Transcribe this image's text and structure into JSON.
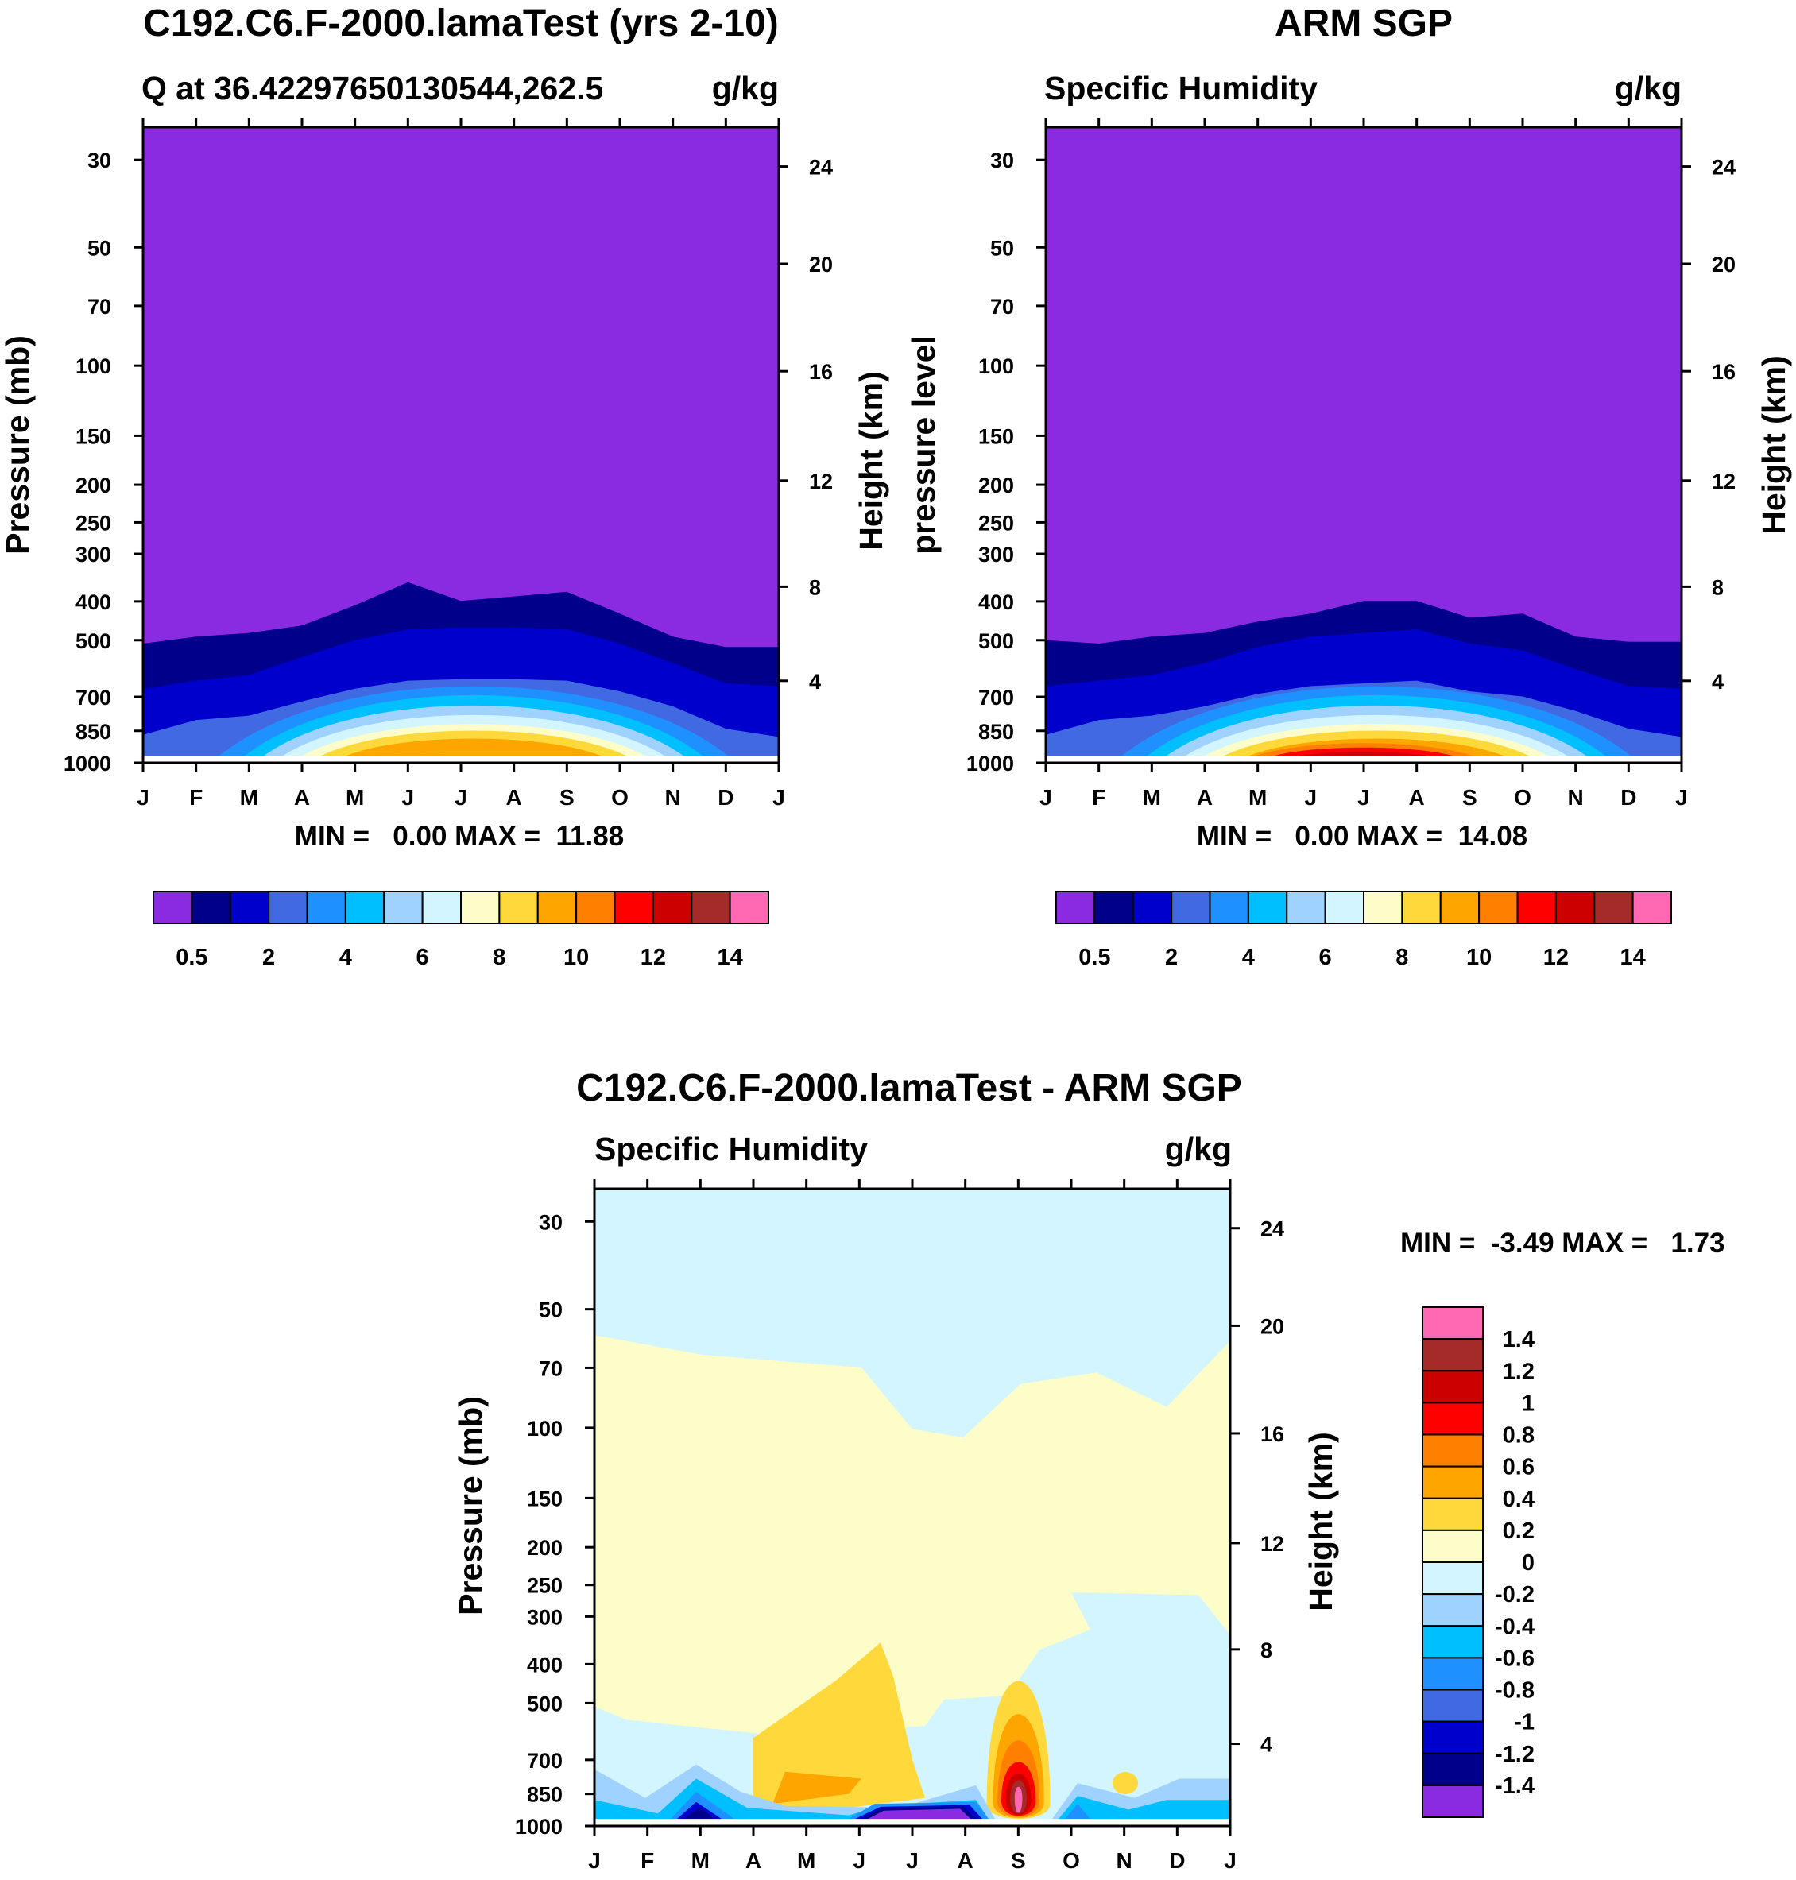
{
  "chart_data": [
    {
      "type": "heatmap",
      "title": "C192.C6.F-2000.lamaTest (yrs 2-10)",
      "subtitle_left": "Q at 36.42297650130544,262.5",
      "subtitle_right": "g/kg",
      "ylabel_left": "Pressure (mb)",
      "ylabel_right": "Height (km)",
      "months": [
        "J",
        "F",
        "M",
        "A",
        "M",
        "J",
        "J",
        "A",
        "S",
        "O",
        "N",
        "D",
        "J"
      ],
      "pressure_ticks": [
        "30",
        "50",
        "70",
        "100",
        "150",
        "200",
        "250",
        "300",
        "400",
        "500",
        "700",
        "850",
        "1000"
      ],
      "height_ticks": [
        "24",
        "20",
        "16",
        "12",
        "8",
        "4"
      ],
      "stats": "MIN =   0.00 MAX =  11.88",
      "colorbar_labels": [
        "0.5",
        "2",
        "4",
        "6",
        "8",
        "10",
        "12",
        "14"
      ],
      "min": 0.0,
      "max": 11.88,
      "contour_tops_mb": {
        "0.5": [
          500,
          480,
          470,
          450,
          400,
          350,
          390,
          380,
          370,
          420,
          480,
          510,
          510
        ],
        "1": [
          650,
          620,
          600,
          540,
          490,
          460,
          455,
          455,
          460,
          500,
          560,
          630,
          640
        ]
      }
    },
    {
      "type": "heatmap",
      "title": "ARM SGP",
      "subtitle_left": "Specific Humidity",
      "subtitle_right": "g/kg",
      "ylabel_left": "pressure level",
      "ylabel_right": "Height (km)",
      "months": [
        "J",
        "F",
        "M",
        "A",
        "M",
        "J",
        "J",
        "A",
        "S",
        "O",
        "N",
        "D",
        "J"
      ],
      "pressure_ticks": [
        "30",
        "50",
        "70",
        "100",
        "150",
        "200",
        "250",
        "300",
        "400",
        "500",
        "700",
        "850",
        "1000"
      ],
      "height_ticks": [
        "24",
        "20",
        "16",
        "12",
        "8",
        "4"
      ],
      "stats": "MIN =   0.00 MAX =  14.08",
      "colorbar_labels": [
        "0.5",
        "2",
        "4",
        "6",
        "8",
        "10",
        "12",
        "14"
      ],
      "min": 0.0,
      "max": 14.08,
      "contour_tops_mb": {
        "0.5": [
          490,
          500,
          480,
          470,
          440,
          420,
          390,
          390,
          430,
          420,
          480,
          495,
          495
        ],
        "1": [
          640,
          620,
          600,
          560,
          510,
          480,
          470,
          460,
          500,
          520,
          580,
          640,
          650
        ]
      }
    },
    {
      "type": "heatmap",
      "title": "C192.C6.F-2000.lamaTest - ARM SGP",
      "subtitle_left": "Specific Humidity",
      "subtitle_right": "g/kg",
      "ylabel_left": "Pressure (mb)",
      "ylabel_right": "Height (km)",
      "months": [
        "J",
        "F",
        "M",
        "A",
        "M",
        "J",
        "J",
        "A",
        "S",
        "O",
        "N",
        "D",
        "J"
      ],
      "pressure_ticks": [
        "30",
        "50",
        "70",
        "100",
        "150",
        "200",
        "250",
        "300",
        "400",
        "500",
        "700",
        "850",
        "1000"
      ],
      "height_ticks": [
        "24",
        "20",
        "16",
        "12",
        "8",
        "4"
      ],
      "stats": "MIN =  -3.49 MAX =   1.73",
      "colorbar_labels": [
        "1.4",
        "1.2",
        "1",
        "0.8",
        "0.6",
        "0.4",
        "0.2",
        "0",
        "-0.2",
        "-0.4",
        "-0.6",
        "-0.8",
        "-1",
        "-1.2",
        "-1.4"
      ],
      "min": -3.49,
      "max": 1.73
    }
  ],
  "palette": {
    "main": [
      "#8a2be2",
      "#00008b",
      "#0000cd",
      "#4169e1",
      "#1e90ff",
      "#00bfff",
      "#a0d2ff",
      "#d2f5ff",
      "#fdfdc9",
      "#ffd93b",
      "#ffa500",
      "#ff7f00",
      "#ff0000",
      "#cd0000",
      "#a52a2a",
      "#ff69b4"
    ],
    "diff": [
      "#ff69b4",
      "#a52a2a",
      "#cd0000",
      "#ff0000",
      "#ff7f00",
      "#ffa500",
      "#ffd93b",
      "#fdfdc9",
      "#d2f5ff",
      "#a0d2ff",
      "#00bfff",
      "#1e90ff",
      "#4169e1",
      "#0000cd",
      "#00008b",
      "#8a2be2"
    ]
  }
}
